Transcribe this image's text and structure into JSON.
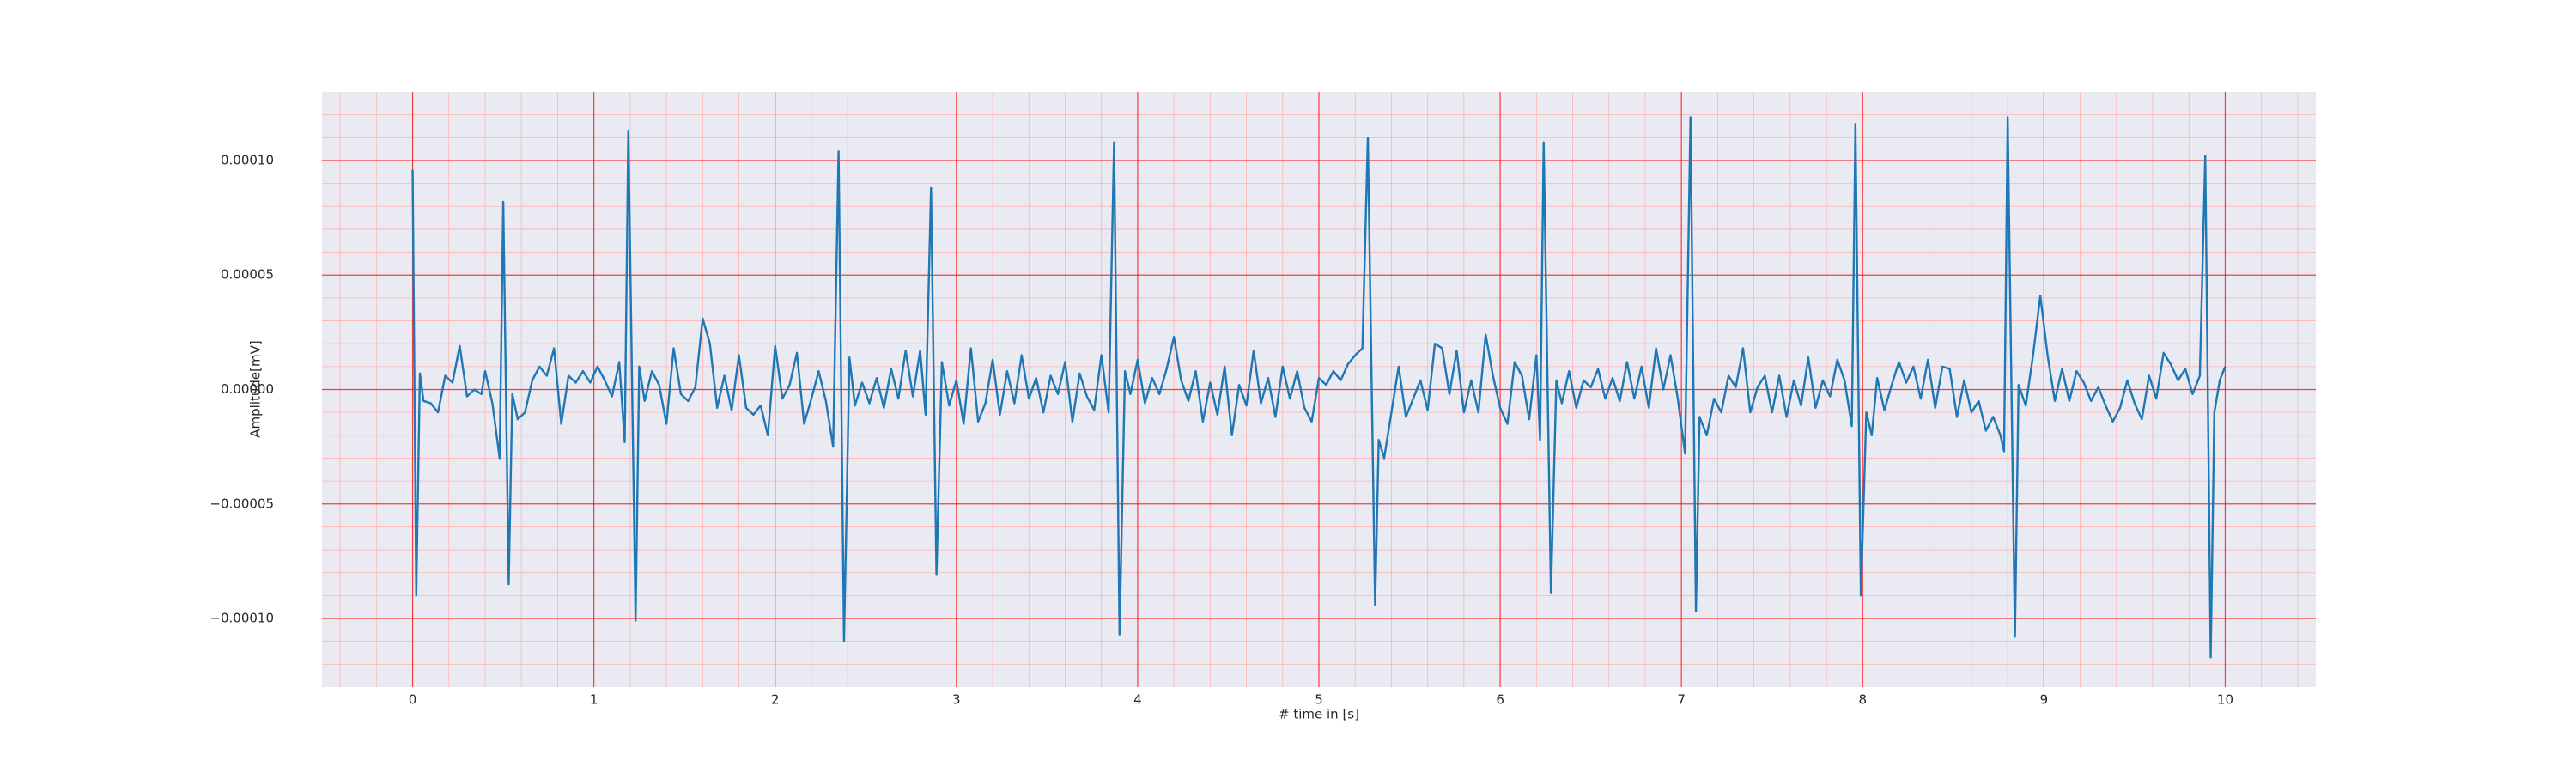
{
  "chart_data": {
    "type": "line",
    "xlabel": "# time in [s]",
    "ylabel": "Amplitude[mV]",
    "color": "#1f77b4",
    "background": "#eaeaf2",
    "grid": true,
    "grid_color": "#ff0000",
    "minor_grid": true,
    "minor_grid_color": "#ffb3b3",
    "xlim": [
      -0.5,
      10.5
    ],
    "xticks": [
      0,
      1,
      2,
      3,
      4,
      5,
      6,
      7,
      8,
      9,
      10
    ],
    "ylim": [
      -0.00013,
      0.00013
    ],
    "yticks": [
      {
        "value": -0.0001,
        "label": "−0.00010"
      },
      {
        "value": -5e-05,
        "label": "−0.00005"
      },
      {
        "value": 0,
        "label": "0.00000"
      },
      {
        "value": 5e-05,
        "label": "0.00005"
      },
      {
        "value": 0.0001,
        "label": "0.00010"
      }
    ],
    "x": [
      0,
      0.02,
      0.04,
      0.06,
      0.1,
      0.14,
      0.18,
      0.22,
      0.26,
      0.3,
      0.34,
      0.38,
      0.4,
      0.44,
      0.48,
      0.5,
      0.53,
      0.55,
      0.58,
      0.62,
      0.66,
      0.7,
      0.74,
      0.78,
      0.82,
      0.86,
      0.9,
      0.94,
      0.98,
      1.02,
      1.06,
      1.1,
      1.14,
      1.17,
      1.19,
      1.23,
      1.25,
      1.28,
      1.32,
      1.36,
      1.4,
      1.44,
      1.48,
      1.52,
      1.56,
      1.6,
      1.64,
      1.68,
      1.72,
      1.76,
      1.8,
      1.84,
      1.88,
      1.92,
      1.96,
      2.0,
      2.04,
      2.08,
      2.12,
      2.16,
      2.2,
      2.24,
      2.28,
      2.32,
      2.35,
      2.38,
      2.41,
      2.44,
      2.48,
      2.52,
      2.56,
      2.6,
      2.64,
      2.68,
      2.72,
      2.76,
      2.8,
      2.83,
      2.86,
      2.89,
      2.92,
      2.96,
      3.0,
      3.04,
      3.08,
      3.12,
      3.16,
      3.2,
      3.24,
      3.28,
      3.32,
      3.36,
      3.4,
      3.44,
      3.48,
      3.52,
      3.56,
      3.6,
      3.64,
      3.68,
      3.72,
      3.76,
      3.8,
      3.84,
      3.87,
      3.9,
      3.93,
      3.96,
      4.0,
      4.04,
      4.08,
      4.12,
      4.16,
      4.2,
      4.24,
      4.28,
      4.32,
      4.36,
      4.4,
      4.44,
      4.48,
      4.52,
      4.56,
      4.6,
      4.64,
      4.68,
      4.72,
      4.76,
      4.8,
      4.84,
      4.88,
      4.92,
      4.96,
      5.0,
      5.04,
      5.08,
      5.12,
      5.16,
      5.2,
      5.24,
      5.27,
      5.31,
      5.33,
      5.36,
      5.4,
      5.44,
      5.48,
      5.52,
      5.56,
      5.6,
      5.64,
      5.68,
      5.72,
      5.76,
      5.8,
      5.84,
      5.88,
      5.92,
      5.96,
      6.0,
      6.04,
      6.08,
      6.12,
      6.16,
      6.2,
      6.22,
      6.24,
      6.28,
      6.31,
      6.34,
      6.38,
      6.42,
      6.46,
      6.5,
      6.54,
      6.58,
      6.62,
      6.66,
      6.7,
      6.74,
      6.78,
      6.82,
      6.86,
      6.9,
      6.94,
      6.98,
      7.02,
      7.05,
      7.08,
      7.1,
      7.14,
      7.18,
      7.22,
      7.26,
      7.3,
      7.34,
      7.38,
      7.42,
      7.46,
      7.5,
      7.54,
      7.58,
      7.62,
      7.66,
      7.7,
      7.74,
      7.78,
      7.82,
      7.86,
      7.9,
      7.94,
      7.96,
      7.99,
      8.02,
      8.05,
      8.08,
      8.12,
      8.16,
      8.2,
      8.24,
      8.28,
      8.32,
      8.36,
      8.4,
      8.44,
      8.48,
      8.52,
      8.56,
      8.6,
      8.64,
      8.68,
      8.72,
      8.76,
      8.78,
      8.8,
      8.84,
      8.86,
      8.9,
      8.94,
      8.98,
      9.02,
      9.06,
      9.1,
      9.14,
      9.18,
      9.22,
      9.26,
      9.3,
      9.34,
      9.38,
      9.42,
      9.46,
      9.5,
      9.54,
      9.58,
      9.62,
      9.66,
      9.7,
      9.74,
      9.78,
      9.82,
      9.86,
      9.89,
      9.92,
      9.94,
      9.97,
      10.0
    ],
    "values": [
      9.6e-05,
      -9e-05,
      7e-06,
      -5e-06,
      -6e-06,
      -1e-05,
      6e-06,
      3e-06,
      1.9e-05,
      -3e-06,
      0.0,
      -2e-06,
      8e-06,
      -6e-06,
      -3e-05,
      8.2e-05,
      -8.5e-05,
      -2e-06,
      -1.3e-05,
      -1e-05,
      4e-06,
      1e-05,
      6e-06,
      1.8e-05,
      -1.5e-05,
      6e-06,
      3e-06,
      8e-06,
      3e-06,
      1e-05,
      4e-06,
      -3e-06,
      1.2e-05,
      -2.3e-05,
      0.000113,
      -0.000101,
      1e-05,
      -5e-06,
      8e-06,
      2e-06,
      -1.5e-05,
      1.8e-05,
      -2e-06,
      -5e-06,
      1e-06,
      3.1e-05,
      2e-05,
      -8e-06,
      6e-06,
      -9e-06,
      1.5e-05,
      -8e-06,
      -1.1e-05,
      -7e-06,
      -2e-05,
      1.9e-05,
      -4e-06,
      2e-06,
      1.6e-05,
      -1.5e-05,
      -4e-06,
      8e-06,
      -5e-06,
      -2.5e-05,
      0.000104,
      -0.00011,
      1.4e-05,
      -7e-06,
      3e-06,
      -6e-06,
      5e-06,
      -8e-06,
      9e-06,
      -4e-06,
      1.7e-05,
      -3e-06,
      1.7e-05,
      -1.1e-05,
      8.8e-05,
      -8.1e-05,
      1.2e-05,
      -7e-06,
      4e-06,
      -1.5e-05,
      1.8e-05,
      -1.4e-05,
      -6e-06,
      1.3e-05,
      -1.1e-05,
      8e-06,
      -6e-06,
      1.5e-05,
      -4e-06,
      5e-06,
      -1e-05,
      6e-06,
      -2e-06,
      1.2e-05,
      -1.4e-05,
      7e-06,
      -3e-06,
      -9e-06,
      1.5e-05,
      -1e-05,
      0.000108,
      -0.000107,
      8e-06,
      -2e-06,
      1.3e-05,
      -6e-06,
      5e-06,
      -2e-06,
      9e-06,
      2.3e-05,
      4e-06,
      -5e-06,
      8e-06,
      -1.4e-05,
      3e-06,
      -1.1e-05,
      1e-05,
      -2e-05,
      2e-06,
      -7e-06,
      1.7e-05,
      -6e-06,
      5e-06,
      -1.2e-05,
      1e-05,
      -4e-06,
      8e-06,
      -8e-06,
      -1.4e-05,
      5e-06,
      2e-06,
      8e-06,
      4e-06,
      1.1e-05,
      1.5e-05,
      1.8e-05,
      0.00011,
      -9.4e-05,
      -2.2e-05,
      -3e-05,
      -1e-05,
      1e-05,
      -1.2e-05,
      -4e-06,
      4e-06,
      -9e-06,
      2e-05,
      1.8e-05,
      -2e-06,
      1.7e-05,
      -1e-05,
      4e-06,
      -1e-05,
      2.4e-05,
      6e-06,
      -8e-06,
      -1.5e-05,
      1.2e-05,
      6e-06,
      -1.3e-05,
      1.5e-05,
      -2.2e-05,
      0.000108,
      -8.9e-05,
      4e-06,
      -6e-06,
      8e-06,
      -8e-06,
      4e-06,
      1e-06,
      9e-06,
      -4e-06,
      5e-06,
      -5e-06,
      1.2e-05,
      -4e-06,
      1e-05,
      -8e-06,
      1.8e-05,
      0.0,
      1.5e-05,
      -4e-06,
      -2.8e-05,
      0.000119,
      -9.7e-05,
      -1.2e-05,
      -2e-05,
      -4e-06,
      -1e-05,
      6e-06,
      1e-06,
      1.8e-05,
      -1e-05,
      1e-06,
      6e-06,
      -1e-05,
      6e-06,
      -1.2e-05,
      4e-06,
      -7e-06,
      1.4e-05,
      -8e-06,
      4e-06,
      -3e-06,
      1.3e-05,
      4e-06,
      -1.6e-05,
      0.000116,
      -9e-05,
      -1e-05,
      -2e-05,
      5e-06,
      -9e-06,
      2e-06,
      1.2e-05,
      3e-06,
      1e-05,
      -4e-06,
      1.3e-05,
      -8e-06,
      1e-05,
      9e-06,
      -1.2e-05,
      4e-06,
      -1e-05,
      -5e-06,
      -1.8e-05,
      -1.2e-05,
      -2e-05,
      -2.7e-05,
      0.000119,
      -0.000108,
      2e-06,
      -7e-06,
      1.5e-05,
      4.1e-05,
      1.5e-05,
      -5e-06,
      9e-06,
      -5e-06,
      8e-06,
      3e-06,
      -5e-06,
      1e-06,
      -7e-06,
      -1.4e-05,
      -8e-06,
      4e-06,
      -6e-06,
      -1.3e-05,
      6e-06,
      -4e-06,
      1.6e-05,
      1.1e-05,
      4e-06,
      9e-06,
      -2e-06,
      6e-06,
      0.000102,
      -0.000117,
      -1e-05,
      4e-06,
      1e-05
    ]
  }
}
